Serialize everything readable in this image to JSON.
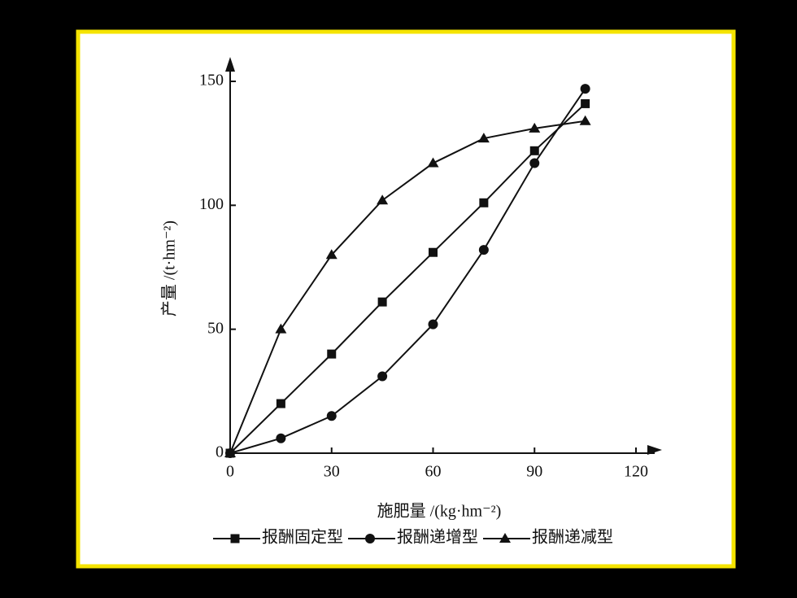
{
  "chart_data": {
    "type": "line",
    "x_label": "施肥量 /(kg·hm⁻²)",
    "y_label": "产量 /(t·hm⁻²)",
    "x": [
      0,
      15,
      30,
      45,
      60,
      75,
      90,
      105
    ],
    "series": [
      {
        "name": "报酬固定型",
        "color": "#111111",
        "marker": "square",
        "values": [
          0,
          20,
          40,
          61,
          81,
          101,
          122,
          141
        ]
      },
      {
        "name": "报酬递增型",
        "color": "#111111",
        "marker": "circle",
        "values": [
          0,
          6,
          15,
          31,
          52,
          82,
          117,
          147
        ]
      },
      {
        "name": "报酬递减型",
        "color": "#111111",
        "marker": "triangle",
        "values": [
          0,
          50,
          80,
          102,
          117,
          127,
          131,
          134
        ]
      }
    ],
    "xlim": [
      0,
      120
    ],
    "ylim": [
      0,
      150
    ],
    "xticks": [
      0,
      30,
      60,
      90,
      120
    ],
    "yticks": [
      0,
      50,
      100,
      150
    ],
    "grid": false,
    "legend": "bottom"
  }
}
